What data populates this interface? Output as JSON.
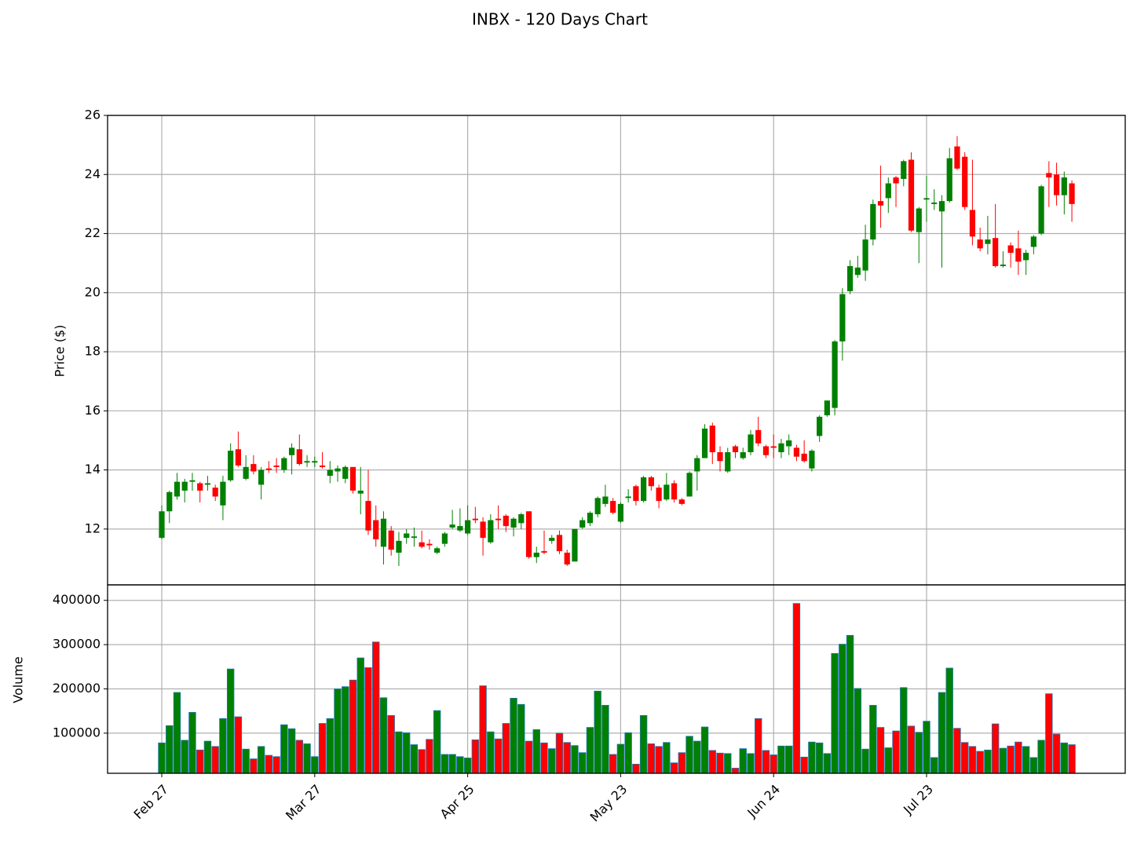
{
  "chart_data": [
    {
      "type": "candlestick",
      "title": "INBX - 120 Days Chart",
      "ylabel": "Price ($)",
      "categories": [
        "Feb 27",
        null,
        null,
        null,
        null,
        null,
        null,
        null,
        null,
        null,
        null,
        null,
        null,
        null,
        null,
        null,
        null,
        null,
        null,
        null,
        "Mar 27",
        null,
        null,
        null,
        null,
        null,
        null,
        null,
        null,
        null,
        null,
        null,
        null,
        null,
        null,
        null,
        null,
        null,
        null,
        null,
        "Apr 25",
        null,
        null,
        null,
        null,
        null,
        null,
        null,
        null,
        null,
        null,
        null,
        null,
        null,
        null,
        null,
        null,
        null,
        null,
        null,
        "May 23",
        null,
        null,
        null,
        null,
        null,
        null,
        null,
        null,
        null,
        null,
        null,
        null,
        null,
        null,
        null,
        null,
        null,
        null,
        null,
        "Jun 24",
        null,
        null,
        null,
        null,
        null,
        null,
        null,
        null,
        null,
        null,
        null,
        null,
        null,
        null,
        null,
        null,
        null,
        null,
        null,
        "Jul 23",
        null,
        null,
        null,
        null,
        null,
        null,
        null,
        null,
        null,
        null,
        null,
        null,
        null,
        null,
        null,
        null,
        null,
        null,
        null
      ],
      "open": [
        11.7,
        12.6,
        13.1,
        13.3,
        13.6,
        13.55,
        13.5,
        13.4,
        12.8,
        13.65,
        14.7,
        13.7,
        14.2,
        13.5,
        14.05,
        14.15,
        14.0,
        14.5,
        14.7,
        14.25,
        14.25,
        14.15,
        13.8,
        13.95,
        13.7,
        14.1,
        13.2,
        12.95,
        12.3,
        11.4,
        11.95,
        11.2,
        11.7,
        11.7,
        11.55,
        11.5,
        11.2,
        11.5,
        12.05,
        11.95,
        11.85,
        12.35,
        12.25,
        11.55,
        12.35,
        12.45,
        12.05,
        12.2,
        12.6,
        11.05,
        11.25,
        11.6,
        11.8,
        11.2,
        10.9,
        12.05,
        12.2,
        12.5,
        12.85,
        12.95,
        12.25,
        13.05,
        13.45,
        12.95,
        13.75,
        13.4,
        13.0,
        13.55,
        13.0,
        13.1,
        13.95,
        14.4,
        15.5,
        14.6,
        13.95,
        14.8,
        14.4,
        14.6,
        15.35,
        14.8,
        14.8,
        14.6,
        14.8,
        14.75,
        14.55,
        14.05,
        15.15,
        15.85,
        16.1,
        18.35,
        20.05,
        20.6,
        20.75,
        21.8,
        23.1,
        23.2,
        23.9,
        23.85,
        24.5,
        22.05,
        23.15,
        23.0,
        22.75,
        23.1,
        24.95,
        24.6,
        22.8,
        21.8,
        21.65,
        21.85,
        20.9,
        21.6,
        21.5,
        21.1,
        21.55,
        22.0,
        24.05,
        24.0,
        23.3,
        23.7
      ],
      "high": [
        12.8,
        13.3,
        13.9,
        13.7,
        13.9,
        13.6,
        13.8,
        13.5,
        13.8,
        14.9,
        15.3,
        14.5,
        14.5,
        14.1,
        14.3,
        14.4,
        14.45,
        14.9,
        15.2,
        14.5,
        14.45,
        14.6,
        14.3,
        14.15,
        14.15,
        14.1,
        14.1,
        14.0,
        12.8,
        12.6,
        12.1,
        11.9,
        12.0,
        12.05,
        11.95,
        11.65,
        11.4,
        11.9,
        12.65,
        12.7,
        12.8,
        12.75,
        12.4,
        12.5,
        12.8,
        12.5,
        12.4,
        12.55,
        12.6,
        11.4,
        11.95,
        11.8,
        11.95,
        11.3,
        12.0,
        12.4,
        12.6,
        13.1,
        13.5,
        13.05,
        12.9,
        13.35,
        13.5,
        13.8,
        13.8,
        13.5,
        13.9,
        13.65,
        13.05,
        13.95,
        14.5,
        15.55,
        15.6,
        14.8,
        14.75,
        14.85,
        14.75,
        15.35,
        15.8,
        14.85,
        15.2,
        15.05,
        15.2,
        14.85,
        15.0,
        14.7,
        15.85,
        16.35,
        18.4,
        20.15,
        21.1,
        21.25,
        22.3,
        23.15,
        24.3,
        23.9,
        23.95,
        24.5,
        24.75,
        22.9,
        23.95,
        23.5,
        23.3,
        24.9,
        25.3,
        24.75,
        24.5,
        22.2,
        22.6,
        23.0,
        21.4,
        21.7,
        22.1,
        21.45,
        21.95,
        23.65,
        24.45,
        24.4,
        24.1,
        23.8
      ],
      "low": [
        11.65,
        12.2,
        13.0,
        12.9,
        13.3,
        12.9,
        13.3,
        12.95,
        12.3,
        13.6,
        14.1,
        13.65,
        13.85,
        13.0,
        13.9,
        13.9,
        13.9,
        13.85,
        14.15,
        14.1,
        14.1,
        14.05,
        13.55,
        13.6,
        13.55,
        13.2,
        12.5,
        11.8,
        11.4,
        10.8,
        11.1,
        10.75,
        11.5,
        11.4,
        11.35,
        11.3,
        11.15,
        11.4,
        12.0,
        11.9,
        11.8,
        12.2,
        11.1,
        11.5,
        12.0,
        11.9,
        11.75,
        12.0,
        11.0,
        10.85,
        11.15,
        11.5,
        11.15,
        10.75,
        10.9,
        12.0,
        12.1,
        12.4,
        12.75,
        12.5,
        12.2,
        12.9,
        12.8,
        12.9,
        13.3,
        12.7,
        12.95,
        12.9,
        12.8,
        13.1,
        13.3,
        14.4,
        14.2,
        13.95,
        13.9,
        14.4,
        14.35,
        14.5,
        14.8,
        14.4,
        14.4,
        14.4,
        14.5,
        14.3,
        14.25,
        13.95,
        14.95,
        15.8,
        15.85,
        17.7,
        19.95,
        20.5,
        20.4,
        21.6,
        22.2,
        22.7,
        22.9,
        23.6,
        22.05,
        21.0,
        22.4,
        22.8,
        20.85,
        23.05,
        24.15,
        22.8,
        21.6,
        21.4,
        21.3,
        20.85,
        20.85,
        20.85,
        20.6,
        20.6,
        21.3,
        21.95,
        22.9,
        22.95,
        22.65,
        22.4
      ],
      "close": [
        12.6,
        13.25,
        13.6,
        13.6,
        13.65,
        13.3,
        13.55,
        13.1,
        13.6,
        14.65,
        14.15,
        14.1,
        13.95,
        14.0,
        14.0,
        14.1,
        14.4,
        14.75,
        14.2,
        14.3,
        14.3,
        14.1,
        14.0,
        14.05,
        14.1,
        13.3,
        13.3,
        11.95,
        11.65,
        12.35,
        11.3,
        11.6,
        11.85,
        11.75,
        11.4,
        11.45,
        11.35,
        11.85,
        12.15,
        12.1,
        12.3,
        12.3,
        11.7,
        12.3,
        12.3,
        12.1,
        12.35,
        12.5,
        11.05,
        11.2,
        11.2,
        11.7,
        11.25,
        10.8,
        12.0,
        12.3,
        12.55,
        13.05,
        13.1,
        12.55,
        12.85,
        13.1,
        12.95,
        13.75,
        13.45,
        12.95,
        13.5,
        13.0,
        12.85,
        13.9,
        14.4,
        15.4,
        14.6,
        14.3,
        14.6,
        14.6,
        14.6,
        15.2,
        14.9,
        14.5,
        14.75,
        14.9,
        15.0,
        14.45,
        14.3,
        14.65,
        15.8,
        16.35,
        18.35,
        19.95,
        20.9,
        20.85,
        21.8,
        23.0,
        22.95,
        23.7,
        23.7,
        24.45,
        22.1,
        22.85,
        23.2,
        23.05,
        23.1,
        24.55,
        24.2,
        22.9,
        21.9,
        21.5,
        21.8,
        20.9,
        20.95,
        21.35,
        21.05,
        21.35,
        21.9,
        23.6,
        23.9,
        23.3,
        23.9,
        23.0
      ],
      "ylim": [
        10.11,
        26
      ],
      "yticks": [
        12,
        14,
        16,
        18,
        20,
        22,
        24,
        26
      ],
      "up_color": "#008000",
      "down_color": "#ff0000",
      "grid": true
    },
    {
      "type": "bar",
      "ylabel": "Volume",
      "values": [
        78000,
        117000,
        192000,
        84000,
        147000,
        62000,
        82000,
        70000,
        133000,
        245000,
        137000,
        64000,
        42000,
        70000,
        50000,
        47000,
        119000,
        110000,
        84000,
        76000,
        47000,
        122000,
        133000,
        200000,
        205000,
        220000,
        270000,
        248000,
        306000,
        180000,
        140000,
        103000,
        101000,
        74000,
        63000,
        86000,
        151000,
        52000,
        52000,
        47000,
        44000,
        85000,
        207000,
        103000,
        87000,
        122000,
        179000,
        165000,
        82000,
        108000,
        78000,
        65000,
        100000,
        79000,
        72000,
        56000,
        113000,
        195000,
        163000,
        52000,
        75000,
        101000,
        30000,
        140000,
        76000,
        70000,
        79000,
        33000,
        56000,
        93000,
        82000,
        114000,
        61000,
        55000,
        54000,
        21000,
        65000,
        54000,
        133000,
        61000,
        51000,
        71000,
        71000,
        393000,
        46000,
        80000,
        78000,
        54000,
        280000,
        301000,
        321000,
        201000,
        64000,
        163000,
        113000,
        67000,
        105000,
        203000,
        116000,
        102000,
        127000,
        45000,
        192000,
        247000,
        111000,
        79000,
        70000,
        59000,
        62000,
        121000,
        66000,
        71000,
        80000,
        70000,
        45000,
        84000,
        189000,
        98000,
        78000,
        74000
      ],
      "ylim": [
        9400,
        435000
      ],
      "yticks": [
        100000,
        200000,
        300000,
        400000
      ],
      "edge_color": "#1f77b4",
      "grid": true
    }
  ]
}
